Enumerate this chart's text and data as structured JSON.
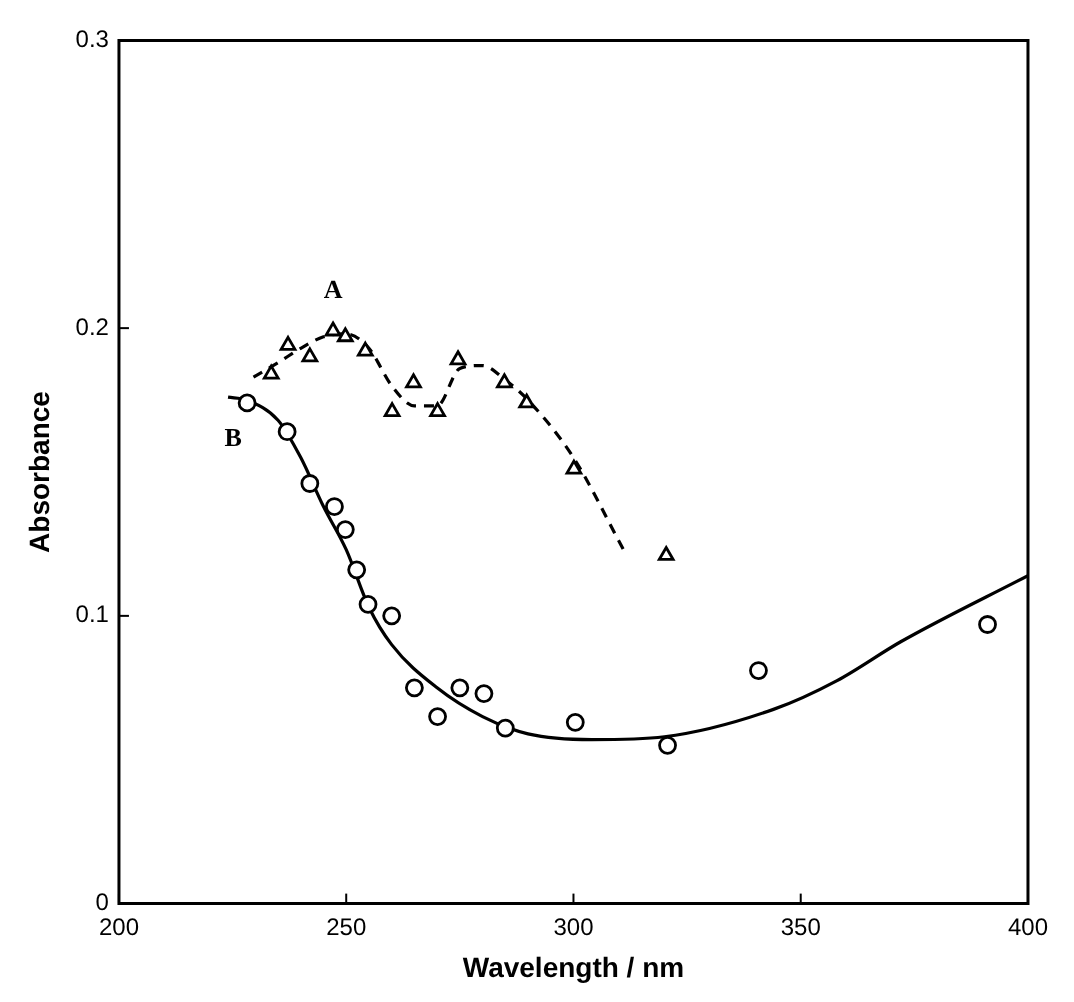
{
  "chart_data": {
    "type": "scatter",
    "xlabel": "Wavelength / nm",
    "ylabel": "Absorbance",
    "xlim": [
      200,
      400
    ],
    "xticks": [
      200,
      250,
      300,
      350,
      400
    ],
    "ylim": [
      0,
      0.3
    ],
    "yticks": [
      0,
      0.1,
      0.2,
      0.3
    ],
    "grid": false,
    "legend": false,
    "series": [
      {
        "type": "scatter",
        "name": "A",
        "marker": "triangle",
        "color": "#000000",
        "x": [
          233.5,
          237.2,
          242.0,
          247.1,
          249.8,
          254.2,
          260.1,
          264.8,
          270.1,
          274.6,
          284.8,
          289.7,
          300.1,
          320.4
        ],
        "values": [
          0.184,
          0.194,
          0.19,
          0.199,
          0.197,
          0.192,
          0.171,
          0.181,
          0.171,
          0.189,
          0.181,
          0.174,
          0.151,
          0.121
        ]
      },
      {
        "type": "line",
        "line_style": "dashed",
        "marker": "none",
        "color": "#000000",
        "x": [
          229.6,
          235,
          240,
          245,
          250,
          255,
          260,
          265,
          270,
          275,
          280,
          285,
          290,
          300,
          311
        ],
        "values": [
          0.183,
          0.188,
          0.193,
          0.197,
          0.198,
          0.193,
          0.18,
          0.173,
          0.173,
          0.186,
          0.187,
          0.182,
          0.175,
          0.155,
          0.123
        ]
      },
      {
        "type": "scatter",
        "name": "B",
        "marker": "circle",
        "color": "#000000",
        "x": [
          228.2,
          237.0,
          242.0,
          247.4,
          249.8,
          252.3,
          254.8,
          260.0,
          265.0,
          270.1,
          275.0,
          280.3,
          285.0,
          300.4,
          320.7,
          340.7,
          391.1
        ],
        "values": [
          0.174,
          0.164,
          0.146,
          0.138,
          0.13,
          0.116,
          0.104,
          0.1,
          0.075,
          0.065,
          0.075,
          0.073,
          0.061,
          0.063,
          0.055,
          0.081,
          0.097
        ]
      },
      {
        "type": "line",
        "line_style": "solid",
        "marker": "none",
        "color": "#000000",
        "x": [
          224,
          228,
          235,
          240,
          245,
          250,
          255,
          260,
          270,
          280,
          290,
          304,
          320,
          344,
          358,
          372,
          400
        ],
        "values": [
          0.176,
          0.175,
          0.168,
          0.155,
          0.138,
          0.123,
          0.103,
          0.09,
          0.075,
          0.065,
          0.059,
          0.057,
          0.058,
          0.0675,
          0.0775,
          0.091,
          0.114
        ]
      }
    ]
  }
}
